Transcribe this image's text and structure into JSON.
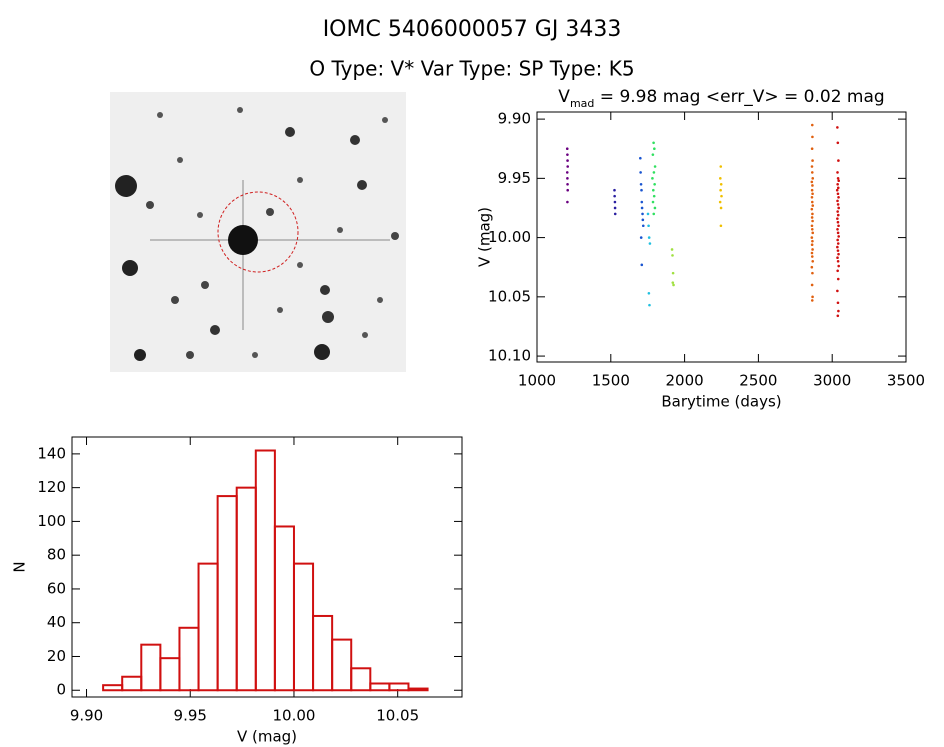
{
  "header": {
    "title": "IOMC 5406000057   GJ  3433",
    "subtitle": "O Type: V*  Var Type:   SP Type: K5"
  },
  "chart_data": [
    {
      "type": "scatter",
      "title": {
        "main": "V",
        "subscript": "mad",
        "rest": " = 9.98 mag <err_V> = 0.02 mag"
      },
      "xlabel": "Barytime (days)",
      "ylabel": "V (mag)",
      "xlim": [
        1000,
        3500
      ],
      "xticks": [
        1000,
        1500,
        2000,
        2500,
        3000,
        3500
      ],
      "ylim": [
        10.105,
        9.894
      ],
      "yticks": [
        {
          "value": 9.9,
          "label": "9.90"
        },
        {
          "value": 9.95,
          "label": "9.95"
        },
        {
          "value": 10.0,
          "label": "10.00"
        },
        {
          "value": 10.05,
          "label": "10.05"
        },
        {
          "value": 10.1,
          "label": "10.10"
        }
      ],
      "series": [
        {
          "color": "#6a0080",
          "x": [
            1205,
            1206,
            1207,
            1208,
            1205,
            1206,
            1207,
            1208,
            1206
          ],
          "values": [
            9.925,
            9.93,
            9.935,
            9.94,
            9.945,
            9.95,
            9.955,
            9.96,
            9.97
          ]
        },
        {
          "color": "#2a1fa0",
          "x": [
            1525,
            1526,
            1528,
            1529,
            1530
          ],
          "values": [
            9.96,
            9.965,
            9.97,
            9.975,
            9.98
          ]
        },
        {
          "color": "#1a55d0",
          "x": [
            1700,
            1702,
            1705,
            1708,
            1710,
            1712,
            1715,
            1717,
            1720,
            1706,
            1710
          ],
          "values": [
            9.933,
            9.945,
            9.955,
            9.96,
            9.97,
            9.975,
            9.98,
            9.985,
            9.99,
            10.0,
            10.023
          ]
        },
        {
          "color": "#20c0e0",
          "x": [
            1752,
            1756,
            1760,
            1765,
            1758,
            1762
          ],
          "values": [
            9.98,
            9.99,
            10.0,
            10.005,
            10.047,
            10.057
          ]
        },
        {
          "color": "#30e060",
          "x": [
            1790,
            1795,
            1785,
            1800,
            1792,
            1782,
            1797,
            1788,
            1794,
            1786,
            1799,
            1791
          ],
          "values": [
            9.92,
            9.925,
            9.93,
            9.94,
            9.945,
            9.95,
            9.955,
            9.96,
            9.965,
            9.97,
            9.975,
            9.98
          ]
        },
        {
          "color": "#a0e040",
          "x": [
            1915,
            1918,
            1922,
            1920,
            1925
          ],
          "values": [
            10.01,
            10.015,
            10.03,
            10.038,
            10.04
          ]
        },
        {
          "color": "#f0c000",
          "x": [
            2245,
            2242,
            2248,
            2244,
            2250,
            2241,
            2247,
            2246
          ],
          "values": [
            9.94,
            9.95,
            9.955,
            9.96,
            9.965,
            9.97,
            9.975,
            9.99
          ]
        },
        {
          "color": "#e06010",
          "x": [
            2865,
            2866,
            2864,
            2867,
            2863,
            2865,
            2868,
            2862,
            2866,
            2864,
            2867,
            2863,
            2865,
            2868,
            2862,
            2866,
            2864,
            2867,
            2863,
            2865,
            2868,
            2862,
            2866,
            2864,
            2867,
            2863,
            2865,
            2868,
            2862,
            2866,
            2864,
            2867,
            2865
          ],
          "values": [
            9.905,
            9.915,
            9.925,
            9.935,
            9.94,
            9.945,
            9.95,
            9.953,
            9.956,
            9.96,
            9.963,
            9.966,
            9.97,
            9.973,
            9.976,
            9.98,
            9.983,
            9.986,
            9.99,
            9.993,
            9.996,
            10.0,
            10.003,
            10.006,
            10.01,
            10.013,
            10.016,
            10.02,
            10.025,
            10.03,
            10.04,
            10.05,
            10.053
          ]
        },
        {
          "color": "#d01010",
          "x": [
            3035,
            3038,
            3042,
            3036,
            3040,
            3044,
            3037,
            3041,
            3034,
            3039,
            3043,
            3036,
            3040,
            3044,
            3037,
            3041,
            3035,
            3039,
            3043,
            3036,
            3040,
            3044,
            3037,
            3041,
            3035,
            3039,
            3043,
            3036,
            3040,
            3044,
            3037,
            3041,
            3035,
            3039,
            3042,
            3038
          ],
          "values": [
            9.907,
            9.92,
            9.935,
            9.945,
            9.95,
            9.952,
            9.955,
            9.958,
            9.96,
            9.963,
            9.966,
            9.969,
            9.972,
            9.975,
            9.978,
            9.981,
            9.984,
            9.987,
            9.99,
            9.993,
            9.996,
            9.999,
            10.002,
            10.005,
            10.008,
            10.011,
            10.014,
            10.017,
            10.02,
            10.024,
            10.028,
            10.035,
            10.045,
            10.055,
            10.062,
            10.066
          ]
        }
      ]
    },
    {
      "type": "histogram",
      "xlabel": "V (mag)",
      "ylabel": "N",
      "color": "#d01010",
      "xlim": [
        9.893,
        10.081
      ],
      "xticks": [
        {
          "value": 9.9,
          "label": "9.90"
        },
        {
          "value": 9.95,
          "label": "9.95"
        },
        {
          "value": 10.0,
          "label": "10.00"
        },
        {
          "value": 10.05,
          "label": "10.05"
        }
      ],
      "ylim": [
        -4,
        150
      ],
      "yticks": [
        0,
        20,
        40,
        60,
        80,
        100,
        120,
        140
      ],
      "bins": [
        9.908,
        9.9172,
        9.9264,
        9.9356,
        9.9448,
        9.954,
        9.9632,
        9.9724,
        9.9816,
        9.9908,
        10.0,
        10.0092,
        10.0184,
        10.0276,
        10.0368,
        10.046,
        10.0552,
        10.0644
      ],
      "values": [
        3,
        8,
        27,
        19,
        37,
        75,
        115,
        120,
        142,
        97,
        75,
        44,
        30,
        13,
        4,
        4,
        1
      ]
    }
  ]
}
